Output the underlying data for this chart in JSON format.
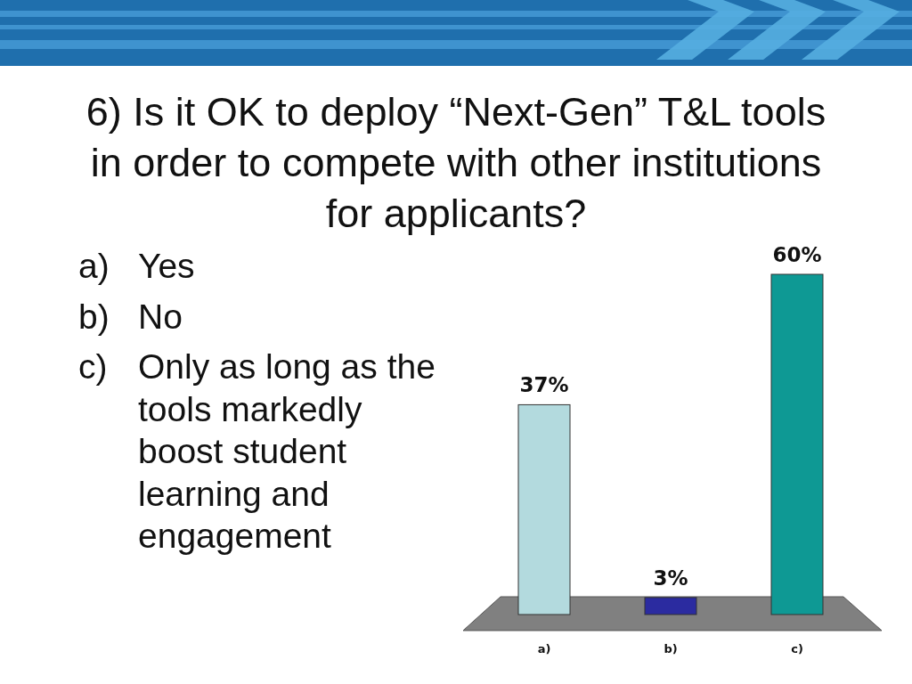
{
  "chart_data": {
    "type": "bar",
    "title": "6) Is it OK to deploy “Next-Gen” T&L tools in order to compete with other institutions for applicants?",
    "categories": [
      "a)",
      "b)",
      "c)"
    ],
    "values": [
      37,
      3,
      60
    ],
    "colors": [
      "#b3dade",
      "#2b2ba0",
      "#0e9994"
    ],
    "value_labels": [
      "37%",
      "3%",
      "60%"
    ],
    "annotations": [
      "a) Yes",
      "b) No",
      "c) Only as long as the tools markedly boost student learning and engagement"
    ]
  }
}
